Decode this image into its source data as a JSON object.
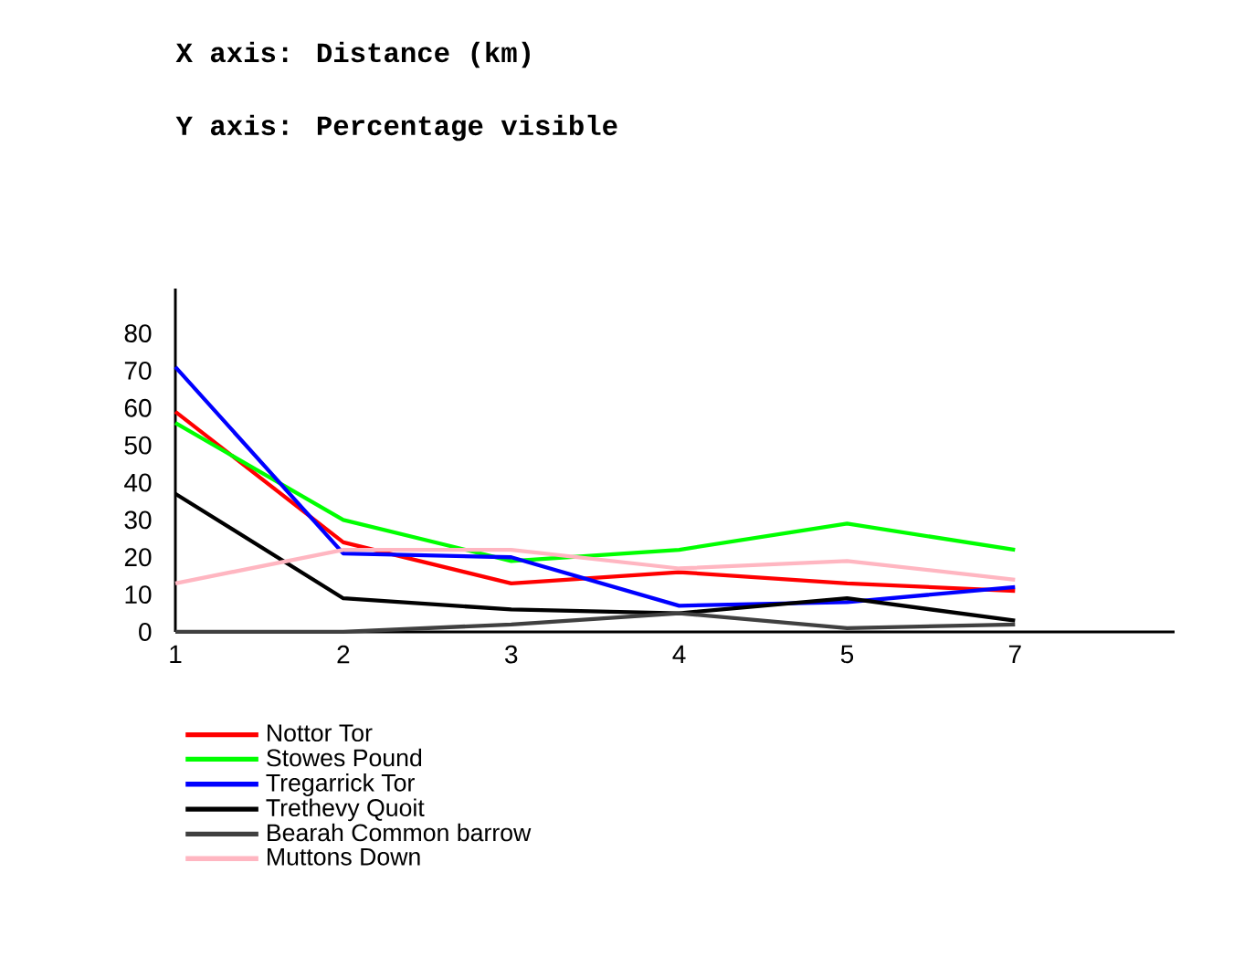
{
  "chart_data": {
    "type": "line",
    "title": "X axis: Distance (km)",
    "subtitle": "Y axis: Percentage visible",
    "categories": [
      "1",
      "2",
      "3",
      "4",
      "5",
      "7"
    ],
    "series": [
      {
        "name": "Nottor Tor",
        "color": "#ff0000",
        "values": [
          59,
          24,
          13,
          16,
          13,
          11
        ]
      },
      {
        "name": "Stowes Pound",
        "color": "#00ff00",
        "values": [
          56,
          30,
          19,
          22,
          29,
          22
        ]
      },
      {
        "name": "Tregarrick Tor",
        "color": "#0000ff",
        "values": [
          71,
          21,
          20,
          7,
          8,
          12
        ]
      },
      {
        "name": "Trethevy Quoit",
        "color": "#000000",
        "values": [
          37,
          9,
          6,
          5,
          9,
          3
        ]
      },
      {
        "name": "Bearah Common barrow",
        "color": "#404040",
        "values": [
          0,
          0,
          2,
          5,
          1,
          2
        ]
      },
      {
        "name": "Muttons Down",
        "color": "#ffb6c1",
        "values": [
          13,
          22,
          22,
          17,
          19,
          14
        ]
      }
    ],
    "ylim": [
      0,
      92
    ],
    "yticks": [
      0,
      10,
      20,
      30,
      40,
      50,
      60,
      70,
      80
    ],
    "legend": "bottom left",
    "grid": false,
    "marker": "none",
    "line_style": "solid"
  }
}
